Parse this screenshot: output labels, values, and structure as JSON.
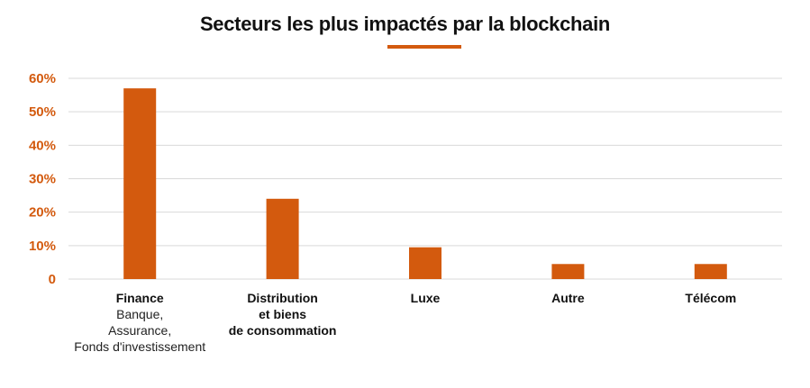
{
  "colors": {
    "accent": "#d35a0e",
    "grid": "#d9d9d9",
    "text": "#111111"
  },
  "chart_data": {
    "type": "bar",
    "title": "Secteurs les plus impactés par la blockchain",
    "xlabel": "",
    "ylabel": "",
    "ylim": [
      0,
      60
    ],
    "yticks": [
      "0",
      "10%",
      "20%",
      "30%",
      "40%",
      "50%",
      "60%"
    ],
    "ytick_values": [
      0,
      10,
      20,
      30,
      40,
      50,
      60
    ],
    "grid": true,
    "categories": [
      "Finance",
      "Distribution et biens de consommation",
      "Luxe",
      "Autre",
      "Télécom"
    ],
    "category_lines": [
      [
        {
          "text": "Finance",
          "bold": true
        },
        {
          "text": "Banque,",
          "bold": false
        },
        {
          "text": "Assurance,",
          "bold": false
        },
        {
          "text": "Fonds d'investissement",
          "bold": false
        }
      ],
      [
        {
          "text": "Distribution",
          "bold": true
        },
        {
          "text": "et biens",
          "bold": true
        },
        {
          "text": "de consommation",
          "bold": true
        }
      ],
      [
        {
          "text": "Luxe",
          "bold": true
        }
      ],
      [
        {
          "text": "Autre",
          "bold": true
        }
      ],
      [
        {
          "text": "Télécom",
          "bold": true
        }
      ]
    ],
    "values": [
      57,
      24,
      9.5,
      4.5,
      4.5
    ]
  }
}
